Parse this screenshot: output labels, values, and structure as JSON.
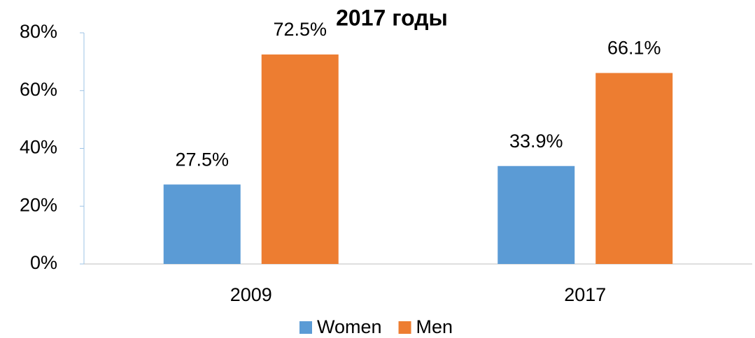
{
  "chart_data": {
    "type": "bar",
    "title": "2017 годы",
    "categories": [
      "2009",
      "2017"
    ],
    "series": [
      {
        "name": "Women",
        "color": "#5b9bd5",
        "values": [
          27.5,
          33.9
        ],
        "value_labels": [
          "27.5%",
          "33.9%"
        ]
      },
      {
        "name": "Men",
        "color": "#ed7d31",
        "values": [
          72.5,
          66.1
        ],
        "value_labels": [
          "72.5%",
          "66.1%"
        ]
      }
    ],
    "ylim": [
      0,
      80
    ],
    "yticks": [
      {
        "value": 0,
        "label": "0%"
      },
      {
        "value": 20,
        "label": "20%"
      },
      {
        "value": 40,
        "label": "40%"
      },
      {
        "value": 60,
        "label": "60%"
      },
      {
        "value": 80,
        "label": "80%"
      }
    ],
    "grid": false,
    "legend": "bottom"
  }
}
